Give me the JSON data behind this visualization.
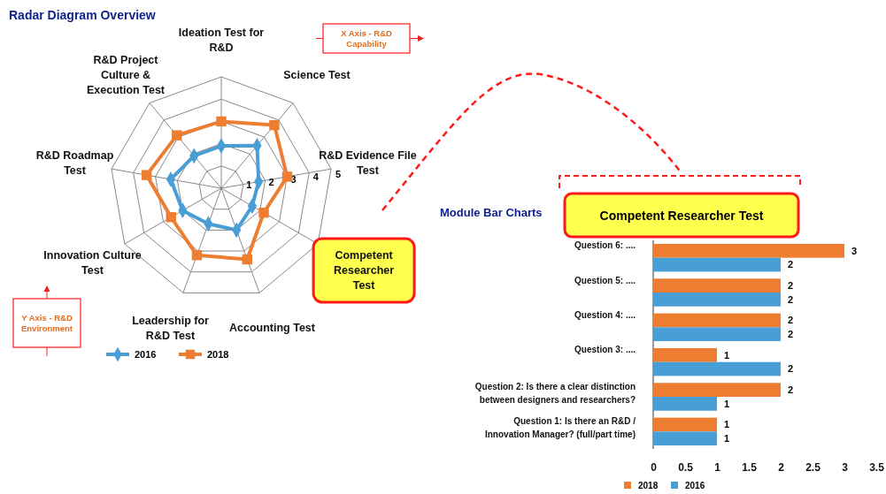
{
  "chart_data": [
    {
      "type": "radar",
      "title": "Radar Diagram Overview",
      "categories": [
        "Ideation Test for R&D",
        "Science Test",
        "R&D Evidence File Test",
        "Competent Researcher Test",
        "Accounting Test",
        "Leadership for R&D Test",
        "Innovation Culture Test",
        "R&D Roadmap Test",
        "R&D Project Culture & Execution Test"
      ],
      "series": [
        {
          "name": "2016",
          "color": "#4a9ed6",
          "marker": "diamond",
          "values": [
            1.9,
            2.5,
            1.7,
            1.6,
            2.0,
            1.7,
            2.0,
            2.3,
            1.9
          ]
        },
        {
          "name": "2018",
          "color": "#ed7d31",
          "marker": "square",
          "values": [
            3.0,
            3.7,
            3.0,
            2.2,
            3.4,
            3.2,
            2.6,
            3.4,
            3.1
          ]
        }
      ],
      "ylim": [
        0,
        5
      ],
      "yticks": [
        1,
        2,
        3,
        4,
        5
      ],
      "legend": "bottom",
      "annotations": [
        "X Axis - R&D Capability",
        "Y Axis - R&D Environment"
      ]
    },
    {
      "type": "bar",
      "orientation": "horizontal",
      "title": "Competent Researcher Test",
      "categories": [
        "Question 6: ....",
        "Question 5: ....",
        "Question 4: ....",
        "Question 3: ....",
        "Question 2: Is there a clear distinction between designers and researchers?",
        "Question 1: Is there an R&D / Innovation Manager? (full/part time)"
      ],
      "series": [
        {
          "name": "2018",
          "color": "#ed7d31",
          "values": [
            3,
            2,
            2,
            1,
            2,
            1
          ]
        },
        {
          "name": "2016",
          "color": "#4a9ed6",
          "values": [
            2,
            2,
            2,
            2,
            1,
            1
          ]
        }
      ],
      "xlim": [
        0,
        3.5
      ],
      "xticks": [
        0,
        0.5,
        1,
        1.5,
        2,
        2.5,
        3,
        3.5
      ],
      "data_labels": true,
      "legend": "bottom",
      "grid": false,
      "annotations": [
        "Module Bar Charts"
      ]
    }
  ]
}
